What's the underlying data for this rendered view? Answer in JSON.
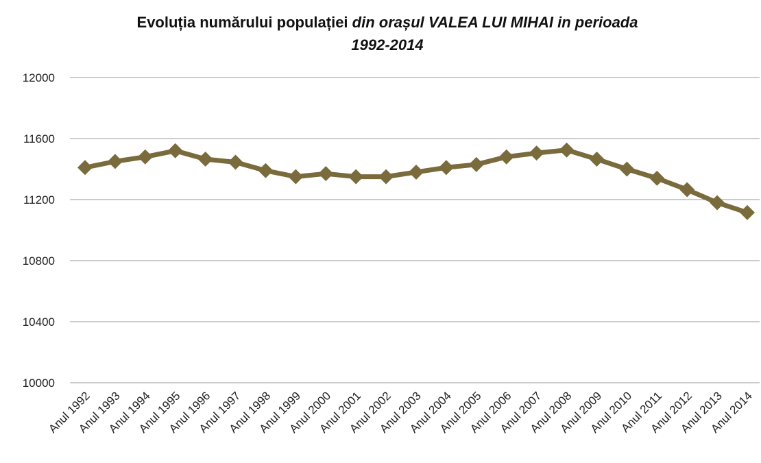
{
  "chart_data": {
    "type": "line",
    "title": [
      "Evoluția numărului populației",
      "din orașul VALEA LUI MIHAI in perioada",
      "1992-2014"
    ],
    "categories": [
      "Anul 1992",
      "Anul 1993",
      "Anul 1994",
      "Anul 1995",
      "Anul 1996",
      "Anul 1997",
      "Anul 1998",
      "Anul 1999",
      "Anul 2000",
      "Anul 2001",
      "Anul 2002",
      "Anul 2003",
      "Anul 2004",
      "Anul 2005",
      "Anul 2006",
      "Anul 2007",
      "Anul 2008",
      "Anul 2009",
      "Anul 2010",
      "Anul 2011",
      "Anul 2012",
      "Anul 2013",
      "Anul 2014"
    ],
    "values": [
      11410,
      11450,
      11480,
      11520,
      11465,
      11445,
      11390,
      11350,
      11370,
      11350,
      11350,
      11380,
      11410,
      11430,
      11480,
      11505,
      11525,
      11465,
      11400,
      11340,
      11265,
      11180,
      11115
    ],
    "color": "#7a6b3d",
    "ylim": [
      10000,
      12000
    ],
    "yticks": [
      10000,
      10400,
      10800,
      11200,
      11600,
      12000
    ],
    "grid": true
  }
}
